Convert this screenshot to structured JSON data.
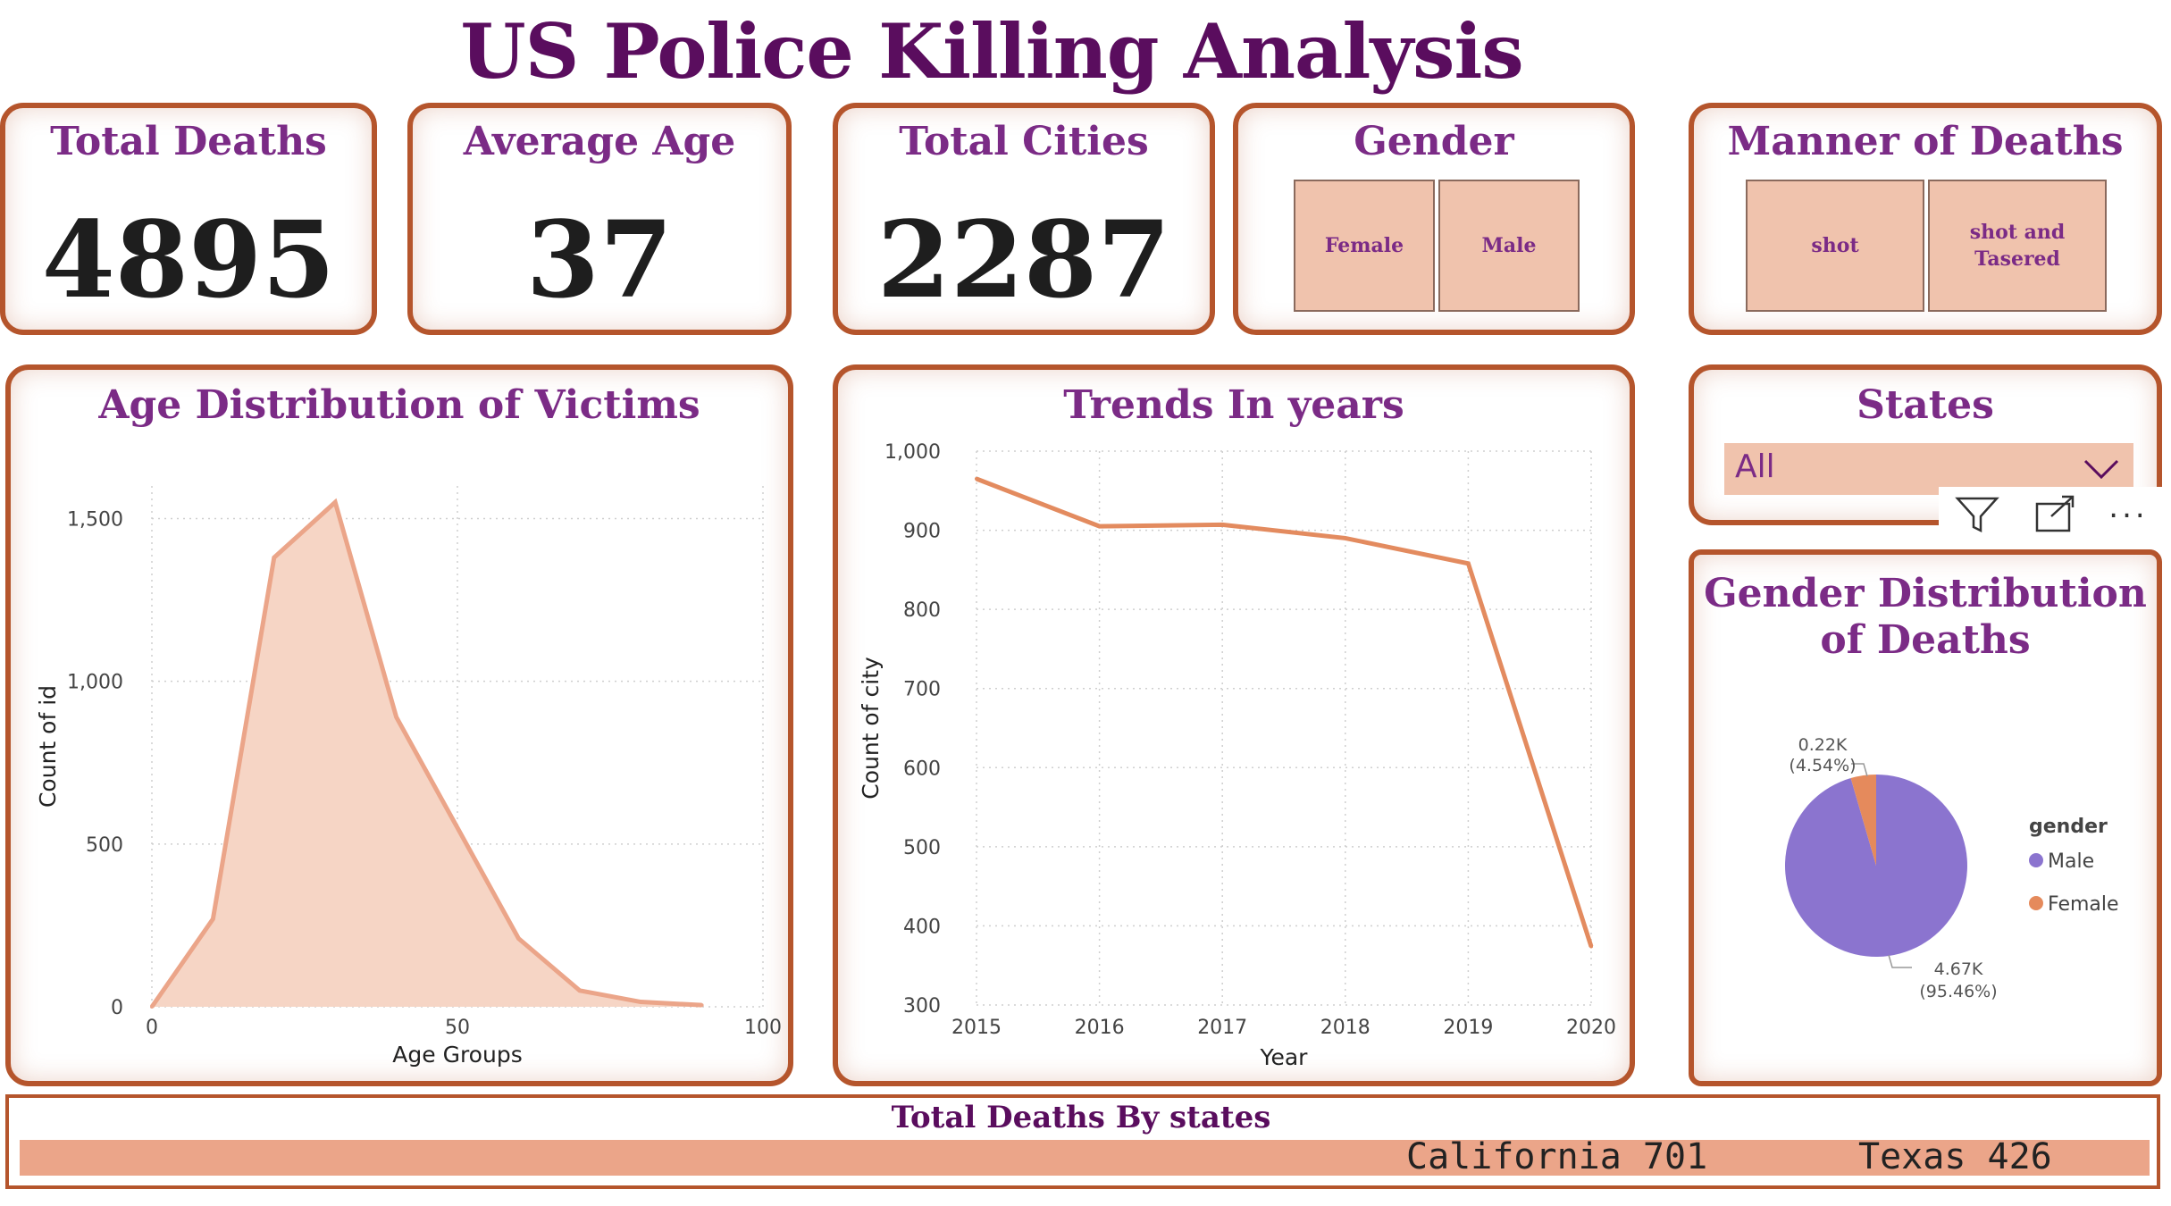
{
  "dashboard": {
    "title": "US Police Killing Analysis"
  },
  "kpis": [
    {
      "label": "Total Deaths",
      "value": "4895"
    },
    {
      "label": "Average Age",
      "value": "37"
    },
    {
      "label": "Total Cities",
      "value": "2287"
    }
  ],
  "gender_slicer": {
    "title": "Gender",
    "options": [
      "Female",
      "Male"
    ]
  },
  "manner_slicer": {
    "title": "Manner of Deaths",
    "options": [
      "shot",
      "shot and Tasered"
    ]
  },
  "states_slicer": {
    "title": "States",
    "selected": "All"
  },
  "toolbar": {
    "icons": [
      "filter-icon",
      "focus-mode-icon",
      "more-options-icon"
    ],
    "more_label": "..."
  },
  "bottom": {
    "title": "Total Deaths By states",
    "items": [
      {
        "label": "California 701",
        "state": "California",
        "value": 701
      },
      {
        "label": "Texas 426",
        "state": "Texas",
        "value": 426
      }
    ]
  },
  "colors": {
    "accent": "#e58a5c",
    "border": "#b5552c",
    "title": "#5a0d5e",
    "heading": "#7b2b86",
    "male": "#8b74cf",
    "female": "#e58a5c"
  },
  "chart_data": [
    {
      "type": "area",
      "title": "Age Distribution of Victims",
      "xlabel": "Age Groups",
      "ylabel": "Count of id",
      "xlim": [
        0,
        100
      ],
      "ylim": [
        0,
        1600
      ],
      "xticks": [
        "0",
        "50",
        "100"
      ],
      "yticks": [
        "0",
        "500",
        "1,000",
        "1,500"
      ],
      "x": [
        0,
        10,
        20,
        30,
        40,
        50,
        60,
        70,
        80,
        90
      ],
      "values": [
        0,
        270,
        1380,
        1550,
        890,
        550,
        210,
        50,
        15,
        5
      ],
      "grid": true
    },
    {
      "type": "line",
      "title": "Trends In years",
      "xlabel": "Year",
      "ylabel": "Count of city",
      "ylim": [
        300,
        1000
      ],
      "x": [
        "2015",
        "2016",
        "2017",
        "2018",
        "2019",
        "2020"
      ],
      "yticks": [
        "300",
        "400",
        "500",
        "600",
        "700",
        "800",
        "900",
        "1,000"
      ],
      "values": [
        965,
        905,
        907,
        890,
        858,
        374
      ],
      "grid": true
    },
    {
      "type": "pie",
      "title": "Gender Distribution of Deaths",
      "legend_title": "gender",
      "legend_position": "right",
      "slices": [
        {
          "name": "Male",
          "value": 4.67,
          "label": "4.67K",
          "pct": "(95.46%)"
        },
        {
          "name": "Female",
          "value": 0.22,
          "label": "0.22K",
          "pct": "(4.54%)"
        }
      ]
    }
  ]
}
